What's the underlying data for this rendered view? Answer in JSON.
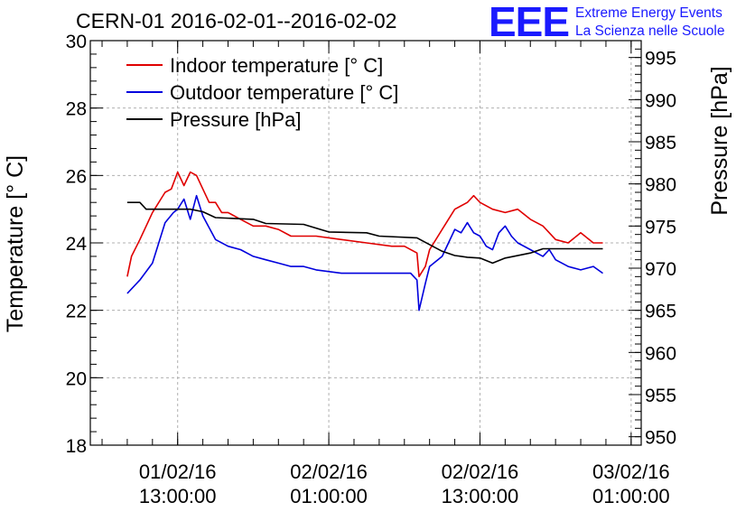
{
  "header": {
    "title": "CERN-01 2016-02-01--2016-02-02",
    "logo_text": "EEE",
    "logo_line1": "Extreme Energy Events",
    "logo_line2": "La Scienza nelle Scuole"
  },
  "colors": {
    "indoor": "#e00000",
    "outdoor": "#0000dd",
    "pressure": "#000000",
    "logo": "#1a1aff"
  },
  "chart_data": {
    "type": "line",
    "title": "CERN-01 2016-02-01--2016-02-02",
    "xlabel": "",
    "ylabel": "Temperature [° C]",
    "y2label": "Pressure [hPa]",
    "ylim": [
      18,
      30
    ],
    "y2lim": [
      949,
      997
    ],
    "xlim": [
      "2016-02-01 06:04",
      "2016-02-03 01:48"
    ],
    "grid": true,
    "legend_position": "top-left",
    "x_ticks": [
      {
        "x": "2016-02-01 13:00:00",
        "line1": "01/02/16",
        "line2": "13:00:00"
      },
      {
        "x": "2016-02-02 01:00:00",
        "line1": "02/02/16",
        "line2": "01:00:00"
      },
      {
        "x": "2016-02-02 13:00:00",
        "line1": "02/02/16",
        "line2": "13:00:00"
      },
      {
        "x": "2016-02-03 01:00:00",
        "line1": "03/02/16",
        "line2": "01:00:00"
      }
    ],
    "y_ticks": [
      18,
      20,
      22,
      24,
      26,
      28,
      30
    ],
    "y2_ticks": [
      950,
      955,
      960,
      965,
      970,
      975,
      980,
      985,
      990,
      995
    ],
    "series": [
      {
        "name": "Indoor temperature [° C]",
        "axis": "left",
        "x": [
          "2016-02-01 09:00",
          "2016-02-01 09:20",
          "2016-02-01 10:00",
          "2016-02-01 11:00",
          "2016-02-01 12:00",
          "2016-02-01 12:30",
          "2016-02-01 13:00",
          "2016-02-01 13:30",
          "2016-02-01 14:00",
          "2016-02-01 14:30",
          "2016-02-01 15:00",
          "2016-02-01 15:30",
          "2016-02-01 16:00",
          "2016-02-01 16:30",
          "2016-02-01 17:00",
          "2016-02-01 18:00",
          "2016-02-01 19:00",
          "2016-02-01 20:00",
          "2016-02-01 21:00",
          "2016-02-01 22:00",
          "2016-02-01 23:00",
          "2016-02-02 00:00",
          "2016-02-02 02:00",
          "2016-02-02 04:00",
          "2016-02-02 06:00",
          "2016-02-02 07:00",
          "2016-02-02 08:00",
          "2016-02-02 08:10",
          "2016-02-02 08:40",
          "2016-02-02 09:00",
          "2016-02-02 10:00",
          "2016-02-02 11:00",
          "2016-02-02 12:00",
          "2016-02-02 12:30",
          "2016-02-02 13:00",
          "2016-02-02 14:00",
          "2016-02-02 15:00",
          "2016-02-02 16:00",
          "2016-02-02 17:00",
          "2016-02-02 18:00",
          "2016-02-02 19:00",
          "2016-02-02 20:00",
          "2016-02-02 21:00",
          "2016-02-02 22:00",
          "2016-02-02 22:45"
        ],
        "values": [
          23.0,
          23.6,
          24.1,
          24.9,
          25.5,
          25.6,
          26.1,
          25.7,
          26.1,
          26.0,
          25.6,
          25.2,
          25.2,
          24.9,
          24.9,
          24.7,
          24.5,
          24.5,
          24.4,
          24.2,
          24.2,
          24.2,
          24.1,
          24.0,
          23.9,
          23.9,
          23.7,
          23.0,
          23.3,
          23.8,
          24.4,
          25.0,
          25.2,
          25.4,
          25.2,
          25.0,
          24.9,
          25.0,
          24.7,
          24.5,
          24.1,
          24.0,
          24.3,
          24.0,
          24.0
        ],
        "color": "#e00000"
      },
      {
        "name": "Outdoor temperature [° C]",
        "axis": "left",
        "x": [
          "2016-02-01 09:00",
          "2016-02-01 10:00",
          "2016-02-01 11:00",
          "2016-02-01 12:00",
          "2016-02-01 12:40",
          "2016-02-01 13:00",
          "2016-02-01 13:30",
          "2016-02-01 14:00",
          "2016-02-01 14:30",
          "2016-02-01 15:00",
          "2016-02-01 16:00",
          "2016-02-01 17:00",
          "2016-02-01 18:00",
          "2016-02-01 19:00",
          "2016-02-01 20:00",
          "2016-02-01 21:00",
          "2016-02-01 22:00",
          "2016-02-01 23:00",
          "2016-02-02 00:00",
          "2016-02-02 02:00",
          "2016-02-02 04:00",
          "2016-02-02 06:00",
          "2016-02-02 07:30",
          "2016-02-02 08:00",
          "2016-02-02 08:10",
          "2016-02-02 08:40",
          "2016-02-02 09:00",
          "2016-02-02 10:00",
          "2016-02-02 10:30",
          "2016-02-02 11:00",
          "2016-02-02 11:30",
          "2016-02-02 12:00",
          "2016-02-02 12:30",
          "2016-02-02 13:00",
          "2016-02-02 13:30",
          "2016-02-02 14:00",
          "2016-02-02 14:30",
          "2016-02-02 15:00",
          "2016-02-02 15:30",
          "2016-02-02 16:00",
          "2016-02-02 17:00",
          "2016-02-02 18:00",
          "2016-02-02 18:30",
          "2016-02-02 19:00",
          "2016-02-02 20:00",
          "2016-02-02 21:00",
          "2016-02-02 22:00",
          "2016-02-02 22:45"
        ],
        "values": [
          22.5,
          22.9,
          23.4,
          24.6,
          24.9,
          25.0,
          25.3,
          24.7,
          25.4,
          24.8,
          24.1,
          23.9,
          23.8,
          23.6,
          23.5,
          23.4,
          23.3,
          23.3,
          23.2,
          23.1,
          23.1,
          23.1,
          23.1,
          22.9,
          22.0,
          22.8,
          23.3,
          23.6,
          24.0,
          24.4,
          24.3,
          24.6,
          24.3,
          24.2,
          23.9,
          23.8,
          24.3,
          24.5,
          24.2,
          24.0,
          23.8,
          23.6,
          23.8,
          23.5,
          23.3,
          23.2,
          23.3,
          23.1
        ],
        "color": "#0000dd"
      },
      {
        "name": "Pressure [hPa]",
        "axis": "right",
        "x": [
          "2016-02-01 09:00",
          "2016-02-01 10:00",
          "2016-02-01 10:30",
          "2016-02-01 14:00",
          "2016-02-01 15:00",
          "2016-02-01 16:00",
          "2016-02-01 19:00",
          "2016-02-01 20:00",
          "2016-02-01 23:00",
          "2016-02-02 01:00",
          "2016-02-02 04:00",
          "2016-02-02 05:00",
          "2016-02-02 08:00",
          "2016-02-02 09:00",
          "2016-02-02 10:00",
          "2016-02-02 11:00",
          "2016-02-02 12:00",
          "2016-02-02 13:00",
          "2016-02-02 14:00",
          "2016-02-02 15:00",
          "2016-02-02 17:00",
          "2016-02-02 18:00",
          "2016-02-02 22:45"
        ],
        "values": [
          977.8,
          977.8,
          977.0,
          977.0,
          976.7,
          976.0,
          975.8,
          975.3,
          975.2,
          974.3,
          974.2,
          973.8,
          973.6,
          972.8,
          972.0,
          971.5,
          971.3,
          971.2,
          970.6,
          971.2,
          971.8,
          972.3,
          972.3
        ],
        "color": "#000000"
      }
    ]
  }
}
